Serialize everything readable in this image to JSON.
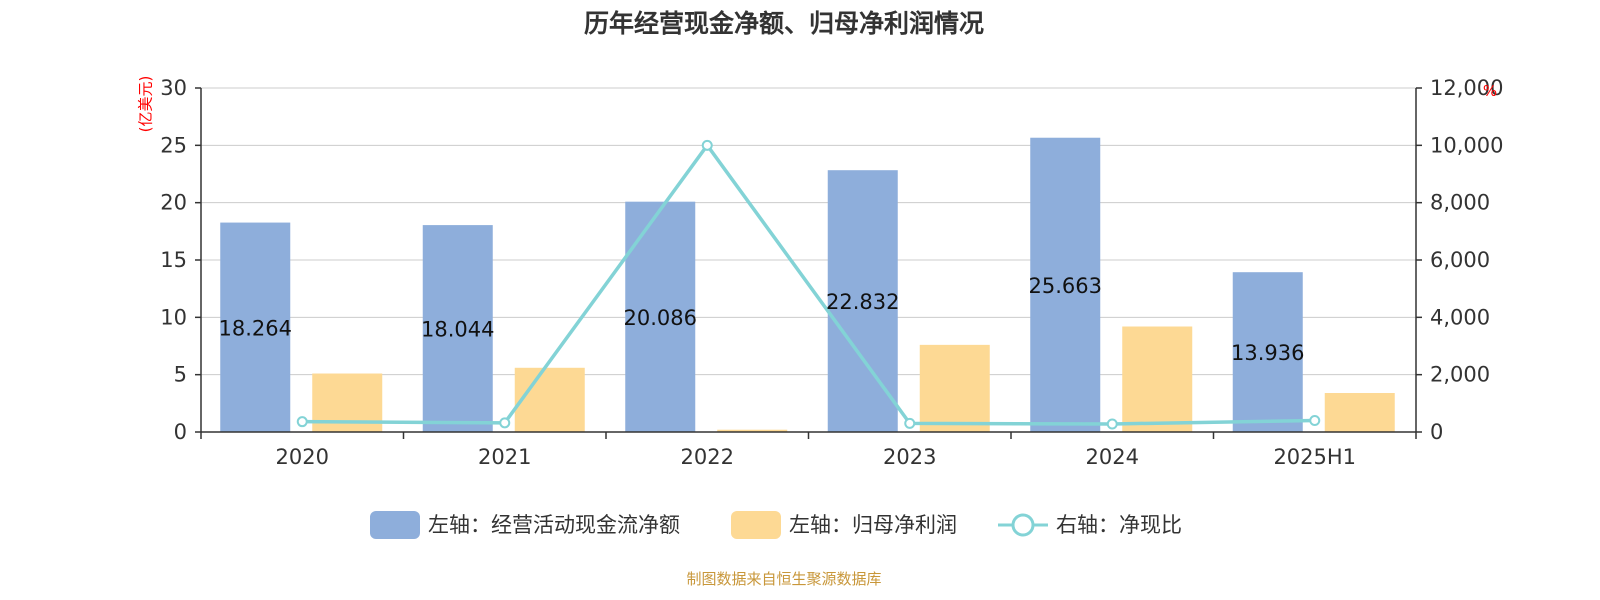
{
  "chart_data": {
    "type": "bar",
    "title": "历年经营现金净额、归母净利润情况",
    "categories": [
      "2020",
      "2021",
      "2022",
      "2023",
      "2024",
      "2025H1"
    ],
    "series": [
      {
        "name": "左轴：经营活动现金流净额",
        "type": "bar",
        "axis": "left",
        "color": "#8eaedb",
        "values": [
          18.264,
          18.044,
          20.086,
          22.832,
          25.663,
          13.936
        ],
        "value_labels": [
          "18.264",
          "18.044",
          "20.086",
          "22.832",
          "25.663",
          "13.936"
        ]
      },
      {
        "name": "左轴：归母净利润",
        "type": "bar",
        "axis": "left",
        "color": "#fdd994",
        "values": [
          5.1,
          5.6,
          0.2,
          7.6,
          9.2,
          3.4
        ]
      },
      {
        "name": "右轴：净现比",
        "type": "line",
        "axis": "right",
        "color": "#83d3d6",
        "values": [
          360,
          320,
          10000,
          300,
          280,
          400
        ]
      }
    ],
    "y_left": {
      "unit_label": "(亿美元)",
      "ylim": [
        0,
        30
      ],
      "ticks": [
        "0",
        "5",
        "10",
        "15",
        "20",
        "25",
        "30"
      ],
      "tick_values": [
        0,
        5,
        10,
        15,
        20,
        25,
        30
      ]
    },
    "y_right": {
      "unit_label": "%",
      "ylim": [
        0,
        12000
      ],
      "ticks": [
        "0",
        "2,000",
        "4,000",
        "6,000",
        "8,000",
        "10,000",
        "12,000"
      ],
      "tick_values": [
        0,
        2000,
        4000,
        6000,
        8000,
        10000,
        12000
      ]
    },
    "grid": true,
    "legend_position": "bottom-center",
    "source": "制图数据来自恒生聚源数据库",
    "colors": {
      "title": "#333333",
      "axis": "#333333",
      "grid": "#cccccc",
      "unit_label": "#ff0000",
      "source": "#c8973a"
    }
  }
}
